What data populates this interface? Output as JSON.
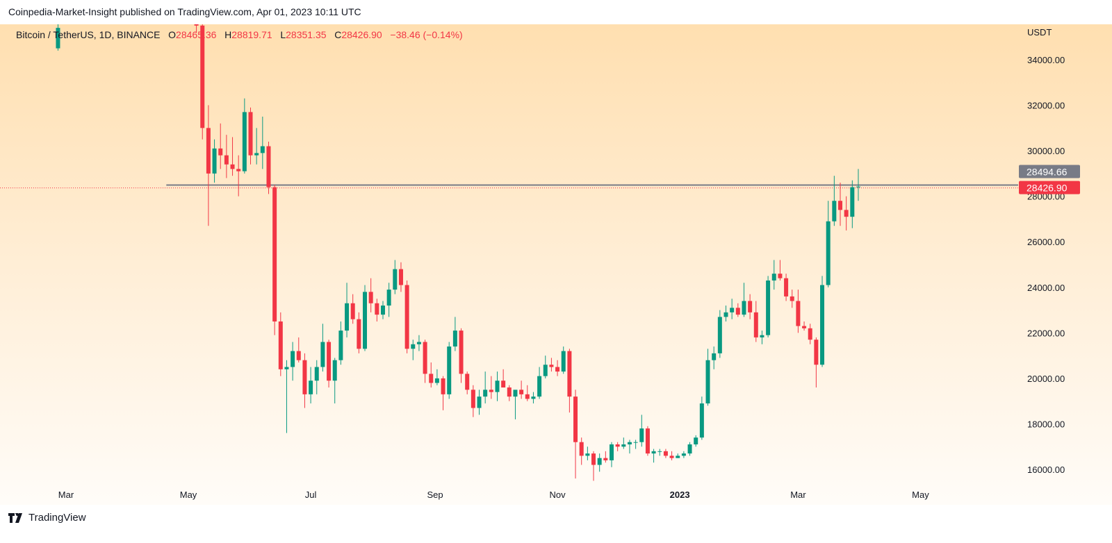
{
  "header": {
    "published": "Coinpedia-Market-Insight published on TradingView.com, Apr 01, 2023 10:11 UTC"
  },
  "legend": {
    "symbol": "Bitcoin / TetherUS, 1D, BINANCE",
    "open_label": "O",
    "open": "28465.36",
    "high_label": "H",
    "high": "28819.71",
    "low_label": "L",
    "low": "28351.35",
    "close_label": "C",
    "close": "28426.90",
    "change": "−38.46 (−0.14%)"
  },
  "footer": {
    "brand": "TradingView"
  },
  "colors": {
    "up": "#089981",
    "down": "#f23645",
    "price_line": "#787b86",
    "last_price": "#f23645"
  },
  "chart_data": {
    "type": "candlestick",
    "ylabel": "USDT",
    "ylim": [
      15200,
      35600
    ],
    "y_ticks": [
      "16000.00",
      "18000.00",
      "20000.00",
      "22000.00",
      "24000.00",
      "26000.00",
      "28000.00",
      "30000.00",
      "32000.00",
      "34000.00"
    ],
    "x_ticks": [
      {
        "date": "2022-03-01",
        "label": "Mar"
      },
      {
        "date": "2022-05-01",
        "label": "May"
      },
      {
        "date": "2022-07-01",
        "label": "Jul"
      },
      {
        "date": "2022-09-01",
        "label": "Sep"
      },
      {
        "date": "2022-11-01",
        "label": "Nov"
      },
      {
        "date": "2023-01-01",
        "label": "2023",
        "bold": true
      },
      {
        "date": "2023-03-01",
        "label": "Mar"
      },
      {
        "date": "2023-05-01",
        "label": "May"
      }
    ],
    "horizontal_line": {
      "value": 28494.66,
      "label": "28494.66",
      "from_date": "2022-04-20"
    },
    "last_price": {
      "value": 28426.9,
      "label": "28426.90"
    },
    "candles_columns": [
      "date",
      "open",
      "high",
      "low",
      "close"
    ],
    "candles": [
      [
        "2022-02-25",
        34500,
        35600,
        34400,
        35400
      ],
      [
        "2022-05-05",
        36500,
        36700,
        35200,
        35500
      ],
      [
        "2022-05-08",
        35500,
        35600,
        30500,
        31000
      ],
      [
        "2022-05-11",
        31000,
        32000,
        26700,
        29000
      ],
      [
        "2022-05-14",
        29000,
        30500,
        28600,
        30100
      ],
      [
        "2022-05-17",
        30100,
        31200,
        29200,
        29800
      ],
      [
        "2022-05-20",
        29800,
        30700,
        28800,
        29400
      ],
      [
        "2022-05-23",
        29400,
        30600,
        28900,
        29200
      ],
      [
        "2022-05-26",
        29200,
        29800,
        28000,
        29100
      ],
      [
        "2022-05-29",
        29100,
        32300,
        29000,
        31700
      ],
      [
        "2022-06-01",
        31700,
        31900,
        29400,
        29800
      ],
      [
        "2022-06-04",
        29800,
        31000,
        29400,
        29900
      ],
      [
        "2022-06-07",
        29900,
        31500,
        29200,
        30200
      ],
      [
        "2022-06-10",
        30200,
        30400,
        28100,
        28400
      ],
      [
        "2022-06-13",
        28400,
        28500,
        21900,
        22500
      ],
      [
        "2022-06-16",
        22500,
        22900,
        20100,
        20400
      ],
      [
        "2022-06-19",
        20400,
        20800,
        17600,
        20500
      ],
      [
        "2022-06-22",
        20500,
        21600,
        19900,
        21200
      ],
      [
        "2022-06-25",
        21200,
        21800,
        20700,
        20800
      ],
      [
        "2022-06-28",
        20800,
        21100,
        18700,
        19300
      ],
      [
        "2022-07-01",
        19300,
        20500,
        18900,
        19900
      ],
      [
        "2022-07-04",
        19900,
        20800,
        19300,
        20500
      ],
      [
        "2022-07-07",
        20500,
        22400,
        20300,
        21600
      ],
      [
        "2022-07-10",
        21600,
        21700,
        19600,
        19900
      ],
      [
        "2022-07-13",
        19900,
        20900,
        18900,
        20800
      ],
      [
        "2022-07-16",
        20800,
        22500,
        20600,
        22100
      ],
      [
        "2022-07-19",
        22100,
        24200,
        21800,
        23300
      ],
      [
        "2022-07-22",
        23300,
        23700,
        22400,
        22600
      ],
      [
        "2022-07-25",
        22600,
        22900,
        21100,
        21300
      ],
      [
        "2022-07-28",
        21300,
        24100,
        21200,
        23800
      ],
      [
        "2022-07-31",
        23800,
        24400,
        22900,
        23300
      ],
      [
        "2022-08-03",
        23300,
        23500,
        22500,
        22800
      ],
      [
        "2022-08-06",
        22800,
        23400,
        22600,
        23200
      ],
      [
        "2022-08-09",
        23200,
        24200,
        22700,
        23900
      ],
      [
        "2022-08-12",
        23900,
        25200,
        23700,
        24800
      ],
      [
        "2022-08-15",
        24800,
        25100,
        23800,
        24100
      ],
      [
        "2022-08-18",
        24100,
        24300,
        21100,
        21300
      ],
      [
        "2022-08-21",
        21300,
        21700,
        20800,
        21500
      ],
      [
        "2022-08-24",
        21500,
        21900,
        21200,
        21600
      ],
      [
        "2022-08-27",
        21600,
        21700,
        19800,
        20200
      ],
      [
        "2022-08-30",
        20200,
        20700,
        19600,
        19800
      ],
      [
        "2022-09-02",
        19800,
        20400,
        19700,
        20000
      ],
      [
        "2022-09-05",
        20000,
        20100,
        18600,
        19300
      ],
      [
        "2022-09-08",
        19300,
        21600,
        19100,
        21400
      ],
      [
        "2022-09-11",
        21400,
        22700,
        21200,
        22100
      ],
      [
        "2022-09-14",
        22100,
        22200,
        19800,
        20200
      ],
      [
        "2022-09-17",
        20200,
        20300,
        19300,
        19500
      ],
      [
        "2022-09-20",
        19500,
        19700,
        18300,
        18700
      ],
      [
        "2022-09-23",
        18700,
        19500,
        18400,
        19200
      ],
      [
        "2022-09-26",
        19200,
        20300,
        18900,
        19500
      ],
      [
        "2022-09-29",
        19500,
        20100,
        19100,
        19400
      ],
      [
        "2022-10-02",
        19400,
        20300,
        19000,
        19900
      ],
      [
        "2022-10-05",
        19900,
        20400,
        19600,
        19600
      ],
      [
        "2022-10-08",
        19600,
        19700,
        19000,
        19200
      ],
      [
        "2022-10-11",
        19200,
        19300,
        18200,
        19500
      ],
      [
        "2022-10-14",
        19500,
        19900,
        19100,
        19300
      ],
      [
        "2022-10-17",
        19300,
        19700,
        19000,
        19100
      ],
      [
        "2022-10-20",
        19100,
        19400,
        18900,
        19200
      ],
      [
        "2022-10-23",
        19200,
        20500,
        19100,
        20100
      ],
      [
        "2022-10-26",
        20100,
        21000,
        20000,
        20600
      ],
      [
        "2022-10-29",
        20600,
        20900,
        20300,
        20500
      ],
      [
        "2022-11-01",
        20500,
        20800,
        20100,
        20300
      ],
      [
        "2022-11-04",
        20300,
        21400,
        20200,
        21200
      ],
      [
        "2022-11-07",
        21200,
        21300,
        18500,
        19200
      ],
      [
        "2022-11-10",
        19200,
        19500,
        15600,
        17200
      ],
      [
        "2022-11-13",
        17200,
        17400,
        16200,
        16600
      ],
      [
        "2022-11-16",
        16600,
        17000,
        16400,
        16700
      ],
      [
        "2022-11-19",
        16700,
        16800,
        15500,
        16200
      ],
      [
        "2022-11-22",
        16200,
        16700,
        15900,
        16500
      ],
      [
        "2022-11-25",
        16500,
        16800,
        16300,
        16400
      ],
      [
        "2022-11-28",
        16400,
        17200,
        16100,
        17100
      ],
      [
        "2022-12-01",
        17100,
        17200,
        16800,
        17000
      ],
      [
        "2022-12-04",
        17000,
        17400,
        16900,
        17100
      ],
      [
        "2022-12-07",
        17100,
        17300,
        16700,
        17200
      ],
      [
        "2022-12-10",
        17200,
        17300,
        16900,
        17200
      ],
      [
        "2022-12-13",
        17200,
        18400,
        17000,
        17800
      ],
      [
        "2022-12-16",
        17800,
        17900,
        16600,
        16700
      ],
      [
        "2022-12-19",
        16700,
        16900,
        16300,
        16800
      ],
      [
        "2022-12-22",
        16800,
        16900,
        16600,
        16800
      ],
      [
        "2022-12-25",
        16800,
        16900,
        16500,
        16600
      ],
      [
        "2022-12-28",
        16600,
        16800,
        16400,
        16500
      ],
      [
        "2022-12-31",
        16500,
        16700,
        16500,
        16600
      ],
      [
        "2023-01-03",
        16600,
        16800,
        16500,
        16700
      ],
      [
        "2023-01-06",
        16700,
        17200,
        16600,
        17100
      ],
      [
        "2023-01-09",
        17100,
        17500,
        17000,
        17400
      ],
      [
        "2023-01-12",
        17400,
        19200,
        17300,
        18900
      ],
      [
        "2023-01-15",
        18900,
        21300,
        18800,
        20800
      ],
      [
        "2023-01-18",
        20800,
        21400,
        20400,
        21100
      ],
      [
        "2023-01-21",
        21100,
        23000,
        20900,
        22700
      ],
      [
        "2023-01-24",
        22700,
        23200,
        22500,
        22900
      ],
      [
        "2023-01-27",
        22900,
        23500,
        22600,
        23100
      ],
      [
        "2023-01-30",
        23100,
        23300,
        22700,
        22800
      ],
      [
        "2023-02-02",
        22800,
        24200,
        22700,
        23400
      ],
      [
        "2023-02-05",
        23400,
        23700,
        22600,
        22900
      ],
      [
        "2023-02-08",
        22900,
        23400,
        21600,
        21800
      ],
      [
        "2023-02-11",
        21800,
        22100,
        21500,
        21900
      ],
      [
        "2023-02-14",
        21900,
        24500,
        21800,
        24300
      ],
      [
        "2023-02-17",
        24300,
        25200,
        23900,
        24600
      ],
      [
        "2023-02-20",
        24600,
        25200,
        24300,
        24400
      ],
      [
        "2023-02-23",
        24400,
        24600,
        23400,
        23600
      ],
      [
        "2023-02-26",
        23600,
        23900,
        23100,
        23400
      ],
      [
        "2023-03-01",
        23400,
        23900,
        22000,
        22300
      ],
      [
        "2023-03-04",
        22300,
        22500,
        22100,
        22200
      ],
      [
        "2023-03-07",
        22200,
        22400,
        21500,
        21700
      ],
      [
        "2023-03-10",
        21700,
        21800,
        19600,
        20600
      ],
      [
        "2023-03-13",
        20600,
        24500,
        20500,
        24100
      ],
      [
        "2023-03-16",
        24100,
        27800,
        24000,
        26900
      ],
      [
        "2023-03-19",
        26900,
        28900,
        26700,
        27800
      ],
      [
        "2023-03-22",
        27800,
        28600,
        26700,
        27400
      ],
      [
        "2023-03-25",
        27400,
        28000,
        26500,
        27100
      ],
      [
        "2023-03-28",
        27100,
        28700,
        26600,
        28400
      ],
      [
        "2023-03-31",
        28400,
        29200,
        27800,
        28426.9
      ]
    ]
  }
}
